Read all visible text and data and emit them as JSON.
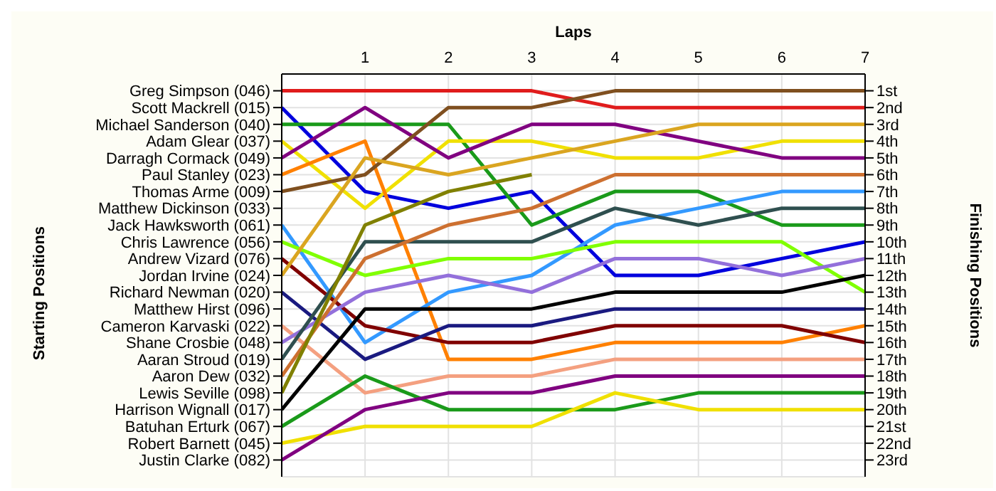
{
  "chart_data": {
    "type": "line",
    "xlabel": "Laps",
    "y2label": "Finishing Positions",
    "annotations": [
      "Starting Positions"
    ],
    "x": [
      0,
      1,
      2,
      3,
      4,
      5,
      6,
      7
    ],
    "xlim": [
      0,
      7
    ],
    "xticks": [
      {
        "value": 0,
        "label": null
      },
      1,
      2,
      3,
      4,
      5,
      6,
      7
    ],
    "y_categories": [
      "Greg Simpson (046)",
      "Scott Mackrell (015)",
      "Michael Sanderson (040)",
      "Adam Glear (037)",
      "Darragh Cormack (049)",
      "Paul Stanley (023)",
      "Thomas Arme (009)",
      "Matthew Dickinson (033)",
      "Jack Hawksworth (061)",
      "Chris Lawrence (056)",
      "Andrew Vizard (076)",
      "Jordan Irvine (024)",
      "Richard Newman (020)",
      "Matthew Hirst (096)",
      "Cameron Karvaski (022)",
      "Shane Crosbie (048)",
      "Aaran Stroud (019)",
      "Aaron Dew (032)",
      "Lewis Seville (098)",
      "Harrison Wignall (017)",
      "Batuhan Erturk (067)",
      "Robert Barnett (045)",
      "Justin Clarke (082)"
    ],
    "y2lim": [
      24,
      0
    ],
    "y2ticks": [
      {
        "value": 1,
        "label": "1st"
      },
      {
        "value": 2,
        "label": "2nd"
      },
      {
        "value": 3,
        "label": "3rd"
      },
      {
        "value": 4,
        "label": "4th"
      },
      {
        "value": 5,
        "label": "5th"
      },
      {
        "value": 6,
        "label": "6th"
      },
      {
        "value": 7,
        "label": "7th"
      },
      {
        "value": 8,
        "label": "8th"
      },
      {
        "value": 9,
        "label": "9th"
      },
      {
        "value": 10,
        "label": "10th"
      },
      {
        "value": 11,
        "label": "11th"
      },
      {
        "value": 12,
        "label": "12th"
      },
      {
        "value": 13,
        "label": "13th"
      },
      {
        "value": 14,
        "label": "14th"
      },
      {
        "value": 15,
        "label": "15th"
      },
      {
        "value": 16,
        "label": "16th"
      },
      {
        "value": 17,
        "label": "17th"
      },
      {
        "value": 18,
        "label": "18th"
      },
      {
        "value": 19,
        "label": "19th"
      },
      {
        "value": 20,
        "label": "20th"
      },
      {
        "value": 21,
        "label": "21st"
      },
      {
        "value": 22,
        "label": "22nd"
      },
      {
        "value": 23,
        "label": "23rd"
      }
    ],
    "grid": true,
    "marker": "none",
    "line_style": "solid",
    "series": [
      {
        "axis": "y2",
        "color": "#e01c1c",
        "values": [
          1,
          1,
          1,
          1,
          2,
          2,
          2,
          2
        ]
      },
      {
        "axis": "y2",
        "color": "#0000dd",
        "values": [
          2,
          7,
          8,
          7,
          12,
          12,
          11,
          10
        ]
      },
      {
        "axis": "y2",
        "color": "#1a9a1a",
        "values": [
          3,
          3,
          3,
          9,
          7,
          7,
          9,
          9
        ]
      },
      {
        "axis": "y2",
        "color": "#f0e000",
        "values": [
          4,
          8,
          4,
          4,
          5,
          5,
          4,
          4
        ]
      },
      {
        "axis": "y2",
        "color": "#800080",
        "values": [
          5,
          2,
          5,
          3,
          3,
          4,
          5,
          5
        ]
      },
      {
        "axis": "y2",
        "color": "#ff8000",
        "values": [
          6,
          4,
          17,
          17,
          16,
          16,
          16,
          15
        ]
      },
      {
        "axis": "y2",
        "color": "#7f4f1f",
        "values": [
          7,
          6,
          2,
          2,
          1,
          1,
          1,
          1
        ]
      },
      {
        "axis": "y2",
        "color": "#3399ff",
        "values": [
          9,
          16,
          13,
          12,
          9,
          8,
          7,
          7
        ]
      },
      {
        "axis": "y2",
        "color": "#80ff00",
        "values": [
          10,
          12,
          11,
          11,
          10,
          10,
          10,
          13
        ]
      },
      {
        "axis": "y2",
        "color": "#800000",
        "values": [
          11,
          15,
          16,
          16,
          15,
          15,
          15,
          16
        ]
      },
      {
        "axis": "y2",
        "color": "#daa520",
        "values": [
          12,
          5,
          6,
          5,
          4,
          3,
          3,
          3
        ]
      },
      {
        "axis": "y2",
        "color": "#1a1a80",
        "values": [
          13,
          17,
          15,
          15,
          14,
          14,
          14,
          14
        ]
      },
      {
        "axis": "y2",
        "color": "#f4a080",
        "values": [
          15,
          19,
          18,
          18,
          17,
          17,
          17,
          17
        ]
      },
      {
        "axis": "y2",
        "color": "#9370db",
        "values": [
          16,
          13,
          12,
          13,
          11,
          11,
          12,
          11
        ]
      },
      {
        "axis": "y2",
        "color": "#2f4f4f",
        "values": [
          17,
          10,
          10,
          10,
          8,
          9,
          8,
          8
        ]
      },
      {
        "axis": "y2",
        "color": "#cd7030",
        "values": [
          18,
          11,
          9,
          8,
          6,
          6,
          6,
          6
        ]
      },
      {
        "axis": "y2",
        "color": "#808000",
        "values": [
          19,
          9,
          7,
          6,
          null,
          null,
          null,
          null
        ]
      },
      {
        "axis": "y2",
        "color": "#000000",
        "values": [
          20,
          14,
          14,
          14,
          13,
          13,
          13,
          12
        ]
      },
      {
        "axis": "y2",
        "color": "#1a9a1a",
        "values": [
          21,
          18,
          20,
          20,
          20,
          19,
          19,
          19
        ]
      },
      {
        "axis": "y2",
        "color": "#f0e000",
        "values": [
          22,
          21,
          21,
          21,
          19,
          20,
          20,
          20
        ]
      },
      {
        "axis": "y2",
        "color": "#800080",
        "values": [
          23,
          20,
          19,
          19,
          18,
          18,
          18,
          18
        ]
      }
    ]
  }
}
